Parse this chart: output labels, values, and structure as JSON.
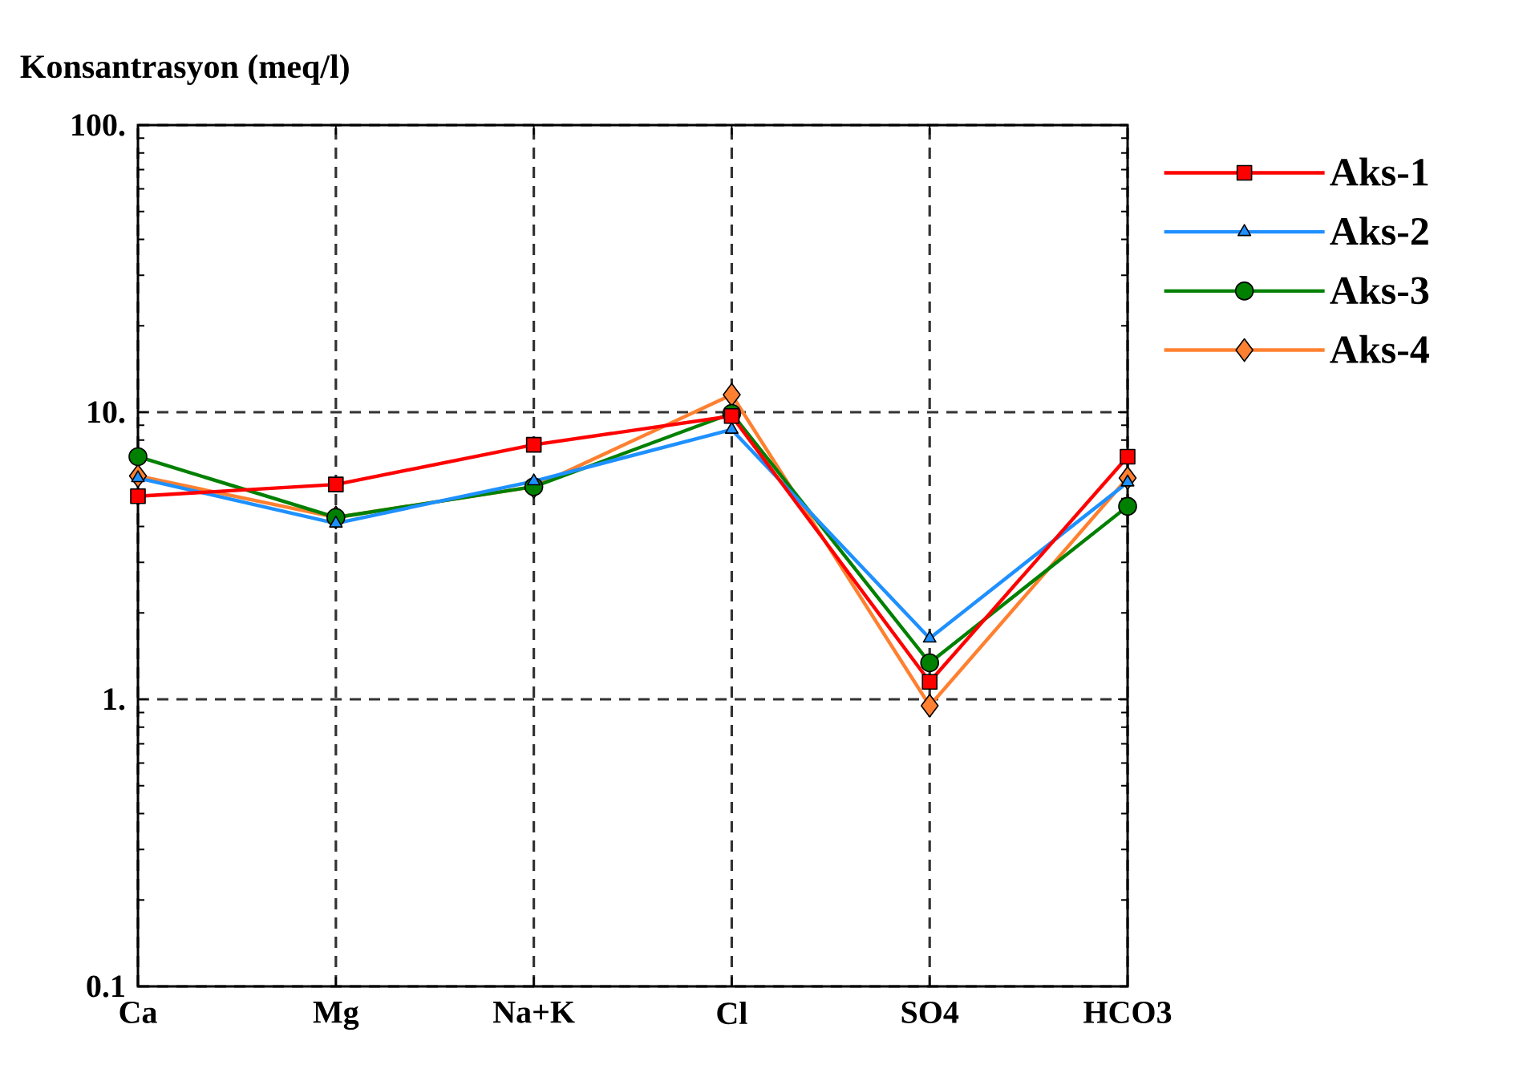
{
  "chart_data": {
    "type": "line",
    "ylabel": "Konsantrasyon (meq/l)",
    "categories": [
      "Ca",
      "Mg",
      "Na+K",
      "Cl",
      "SO4",
      "HCO3"
    ],
    "series": [
      {
        "name": "Aks-1",
        "color": "#ff0000",
        "marker": "square",
        "values": [
          5.1,
          5.6,
          7.7,
          9.7,
          1.15,
          7.0
        ]
      },
      {
        "name": "Aks-2",
        "color": "#1e90ff",
        "marker": "triangle",
        "values": [
          5.9,
          4.1,
          5.75,
          8.7,
          1.63,
          5.7
        ]
      },
      {
        "name": "Aks-3",
        "color": "#008000",
        "marker": "circle",
        "values": [
          7.0,
          4.3,
          5.5,
          9.9,
          1.34,
          4.7
        ]
      },
      {
        "name": "Aks-4",
        "color": "#ff8030",
        "marker": "diamond",
        "values": [
          6.0,
          4.3,
          5.5,
          11.5,
          0.95,
          5.9
        ]
      }
    ],
    "ylim": [
      0.1,
      100
    ],
    "yticks": [
      {
        "value": 0.1,
        "label": "0.1"
      },
      {
        "value": 1,
        "label": "1."
      },
      {
        "value": 10,
        "label": "10."
      },
      {
        "value": 100,
        "label": "100."
      }
    ],
    "log": true,
    "grid": true,
    "legend": "right",
    "line_style": "solid"
  }
}
